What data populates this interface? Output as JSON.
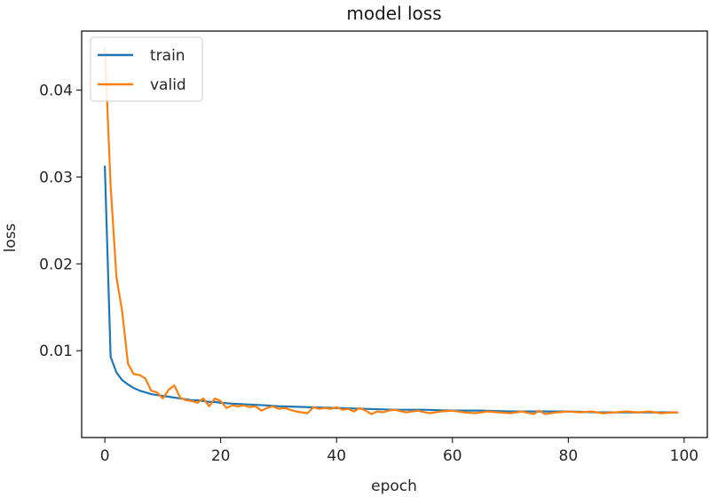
{
  "chart_data": {
    "type": "line",
    "title": "model loss",
    "xlabel": "epoch",
    "ylabel": "loss",
    "xlim": [
      -4,
      104
    ],
    "ylim": [
      0.0,
      0.0468
    ],
    "xticks": [
      0,
      20,
      40,
      60,
      80,
      100
    ],
    "xtick_labels": [
      "0",
      "20",
      "40",
      "60",
      "80",
      "100"
    ],
    "yticks": [
      0.01,
      0.02,
      0.03,
      0.04
    ],
    "ytick_labels": [
      "0.01",
      "0.02",
      "0.03",
      "0.04"
    ],
    "grid": false,
    "legend": "upper left",
    "series": [
      {
        "name": "train",
        "color": "#1f77b4",
        "x": [
          0,
          1,
          2,
          3,
          4,
          5,
          6,
          7,
          8,
          9,
          10,
          11,
          12,
          13,
          14,
          15,
          16,
          17,
          18,
          19,
          20,
          22,
          25,
          28,
          30,
          35,
          40,
          45,
          50,
          55,
          60,
          65,
          70,
          75,
          80,
          85,
          90,
          95,
          99
        ],
        "values": [
          0.0313,
          0.0093,
          0.0075,
          0.0066,
          0.0061,
          0.0057,
          0.0054,
          0.0052,
          0.005,
          0.0049,
          0.0048,
          0.0047,
          0.0046,
          0.0045,
          0.0044,
          0.0043,
          0.0043,
          0.0042,
          0.0041,
          0.0041,
          0.004,
          0.0039,
          0.0038,
          0.0037,
          0.0036,
          0.0035,
          0.0034,
          0.0033,
          0.0032,
          0.0032,
          0.0031,
          0.0031,
          0.003,
          0.003,
          0.003,
          0.0029,
          0.0029,
          0.0029,
          0.0029
        ]
      },
      {
        "name": "valid",
        "color": "#ff7f0e",
        "x": [
          0,
          1,
          2,
          3,
          4,
          5,
          6,
          7,
          8,
          9,
          10,
          11,
          12,
          13,
          14,
          15,
          16,
          17,
          18,
          19,
          20,
          21,
          22,
          23,
          24,
          25,
          26,
          27,
          28,
          29,
          30,
          31,
          32,
          33,
          34,
          35,
          36,
          37,
          38,
          39,
          40,
          41,
          42,
          43,
          44,
          45,
          46,
          47,
          48,
          49,
          50,
          52,
          54,
          56,
          58,
          60,
          62,
          64,
          66,
          68,
          70,
          72,
          74,
          75,
          76,
          78,
          80,
          82,
          84,
          86,
          88,
          90,
          92,
          94,
          96,
          98,
          99
        ],
        "values": [
          0.045,
          0.029,
          0.0185,
          0.0145,
          0.0085,
          0.0073,
          0.0072,
          0.0068,
          0.0054,
          0.0052,
          0.0045,
          0.0055,
          0.006,
          0.0046,
          0.0043,
          0.0042,
          0.004,
          0.0045,
          0.0036,
          0.0045,
          0.0042,
          0.0034,
          0.0037,
          0.0036,
          0.0037,
          0.0035,
          0.0036,
          0.0031,
          0.0034,
          0.0036,
          0.0033,
          0.0034,
          0.0032,
          0.003,
          0.0029,
          0.0028,
          0.0035,
          0.0033,
          0.0034,
          0.0033,
          0.0035,
          0.0032,
          0.0033,
          0.003,
          0.0034,
          0.0031,
          0.0027,
          0.003,
          0.0029,
          0.0031,
          0.0032,
          0.0029,
          0.0031,
          0.0028,
          0.003,
          0.0031,
          0.0029,
          0.0028,
          0.003,
          0.0029,
          0.0028,
          0.003,
          0.0027,
          0.0031,
          0.0027,
          0.0029,
          0.003,
          0.0029,
          0.003,
          0.0028,
          0.0029,
          0.003,
          0.0029,
          0.003,
          0.0028,
          0.0029,
          0.0029
        ]
      }
    ]
  }
}
